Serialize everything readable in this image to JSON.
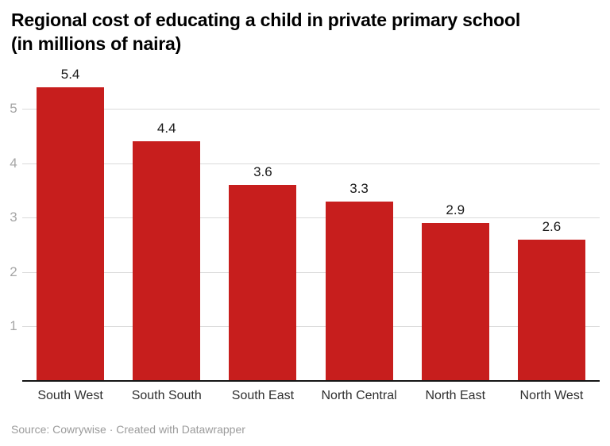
{
  "header": {
    "title_line1": "Regional cost of educating a child in private primary school",
    "title_line2": "(in millions of naira)"
  },
  "chart_data": {
    "type": "bar",
    "title": "Regional cost of educating a child in private primary school (in millions of naira)",
    "categories": [
      "South West",
      "South South",
      "South East",
      "North Central",
      "North East",
      "North West"
    ],
    "values": [
      5.4,
      4.4,
      3.6,
      3.3,
      2.9,
      2.6
    ],
    "bar_labels": [
      "5.4",
      "4.4",
      "3.6",
      "3.3",
      "2.9",
      "2.6"
    ],
    "xlabel": "",
    "ylabel": "",
    "yticks": [
      1,
      2,
      3,
      4,
      5
    ],
    "ylim": [
      0,
      5.6
    ],
    "grid": true,
    "legend": false,
    "colors": {
      "bar": "#c71e1d",
      "gridline": "#dadada",
      "axis_line": "#161616",
      "tick_label": "#a6a6a6",
      "value_label": "#1a1a1a",
      "category_label": "#2e2e2e"
    }
  },
  "footer": {
    "source_line": "Source: Cowrywise · Created with Datawrapper"
  }
}
